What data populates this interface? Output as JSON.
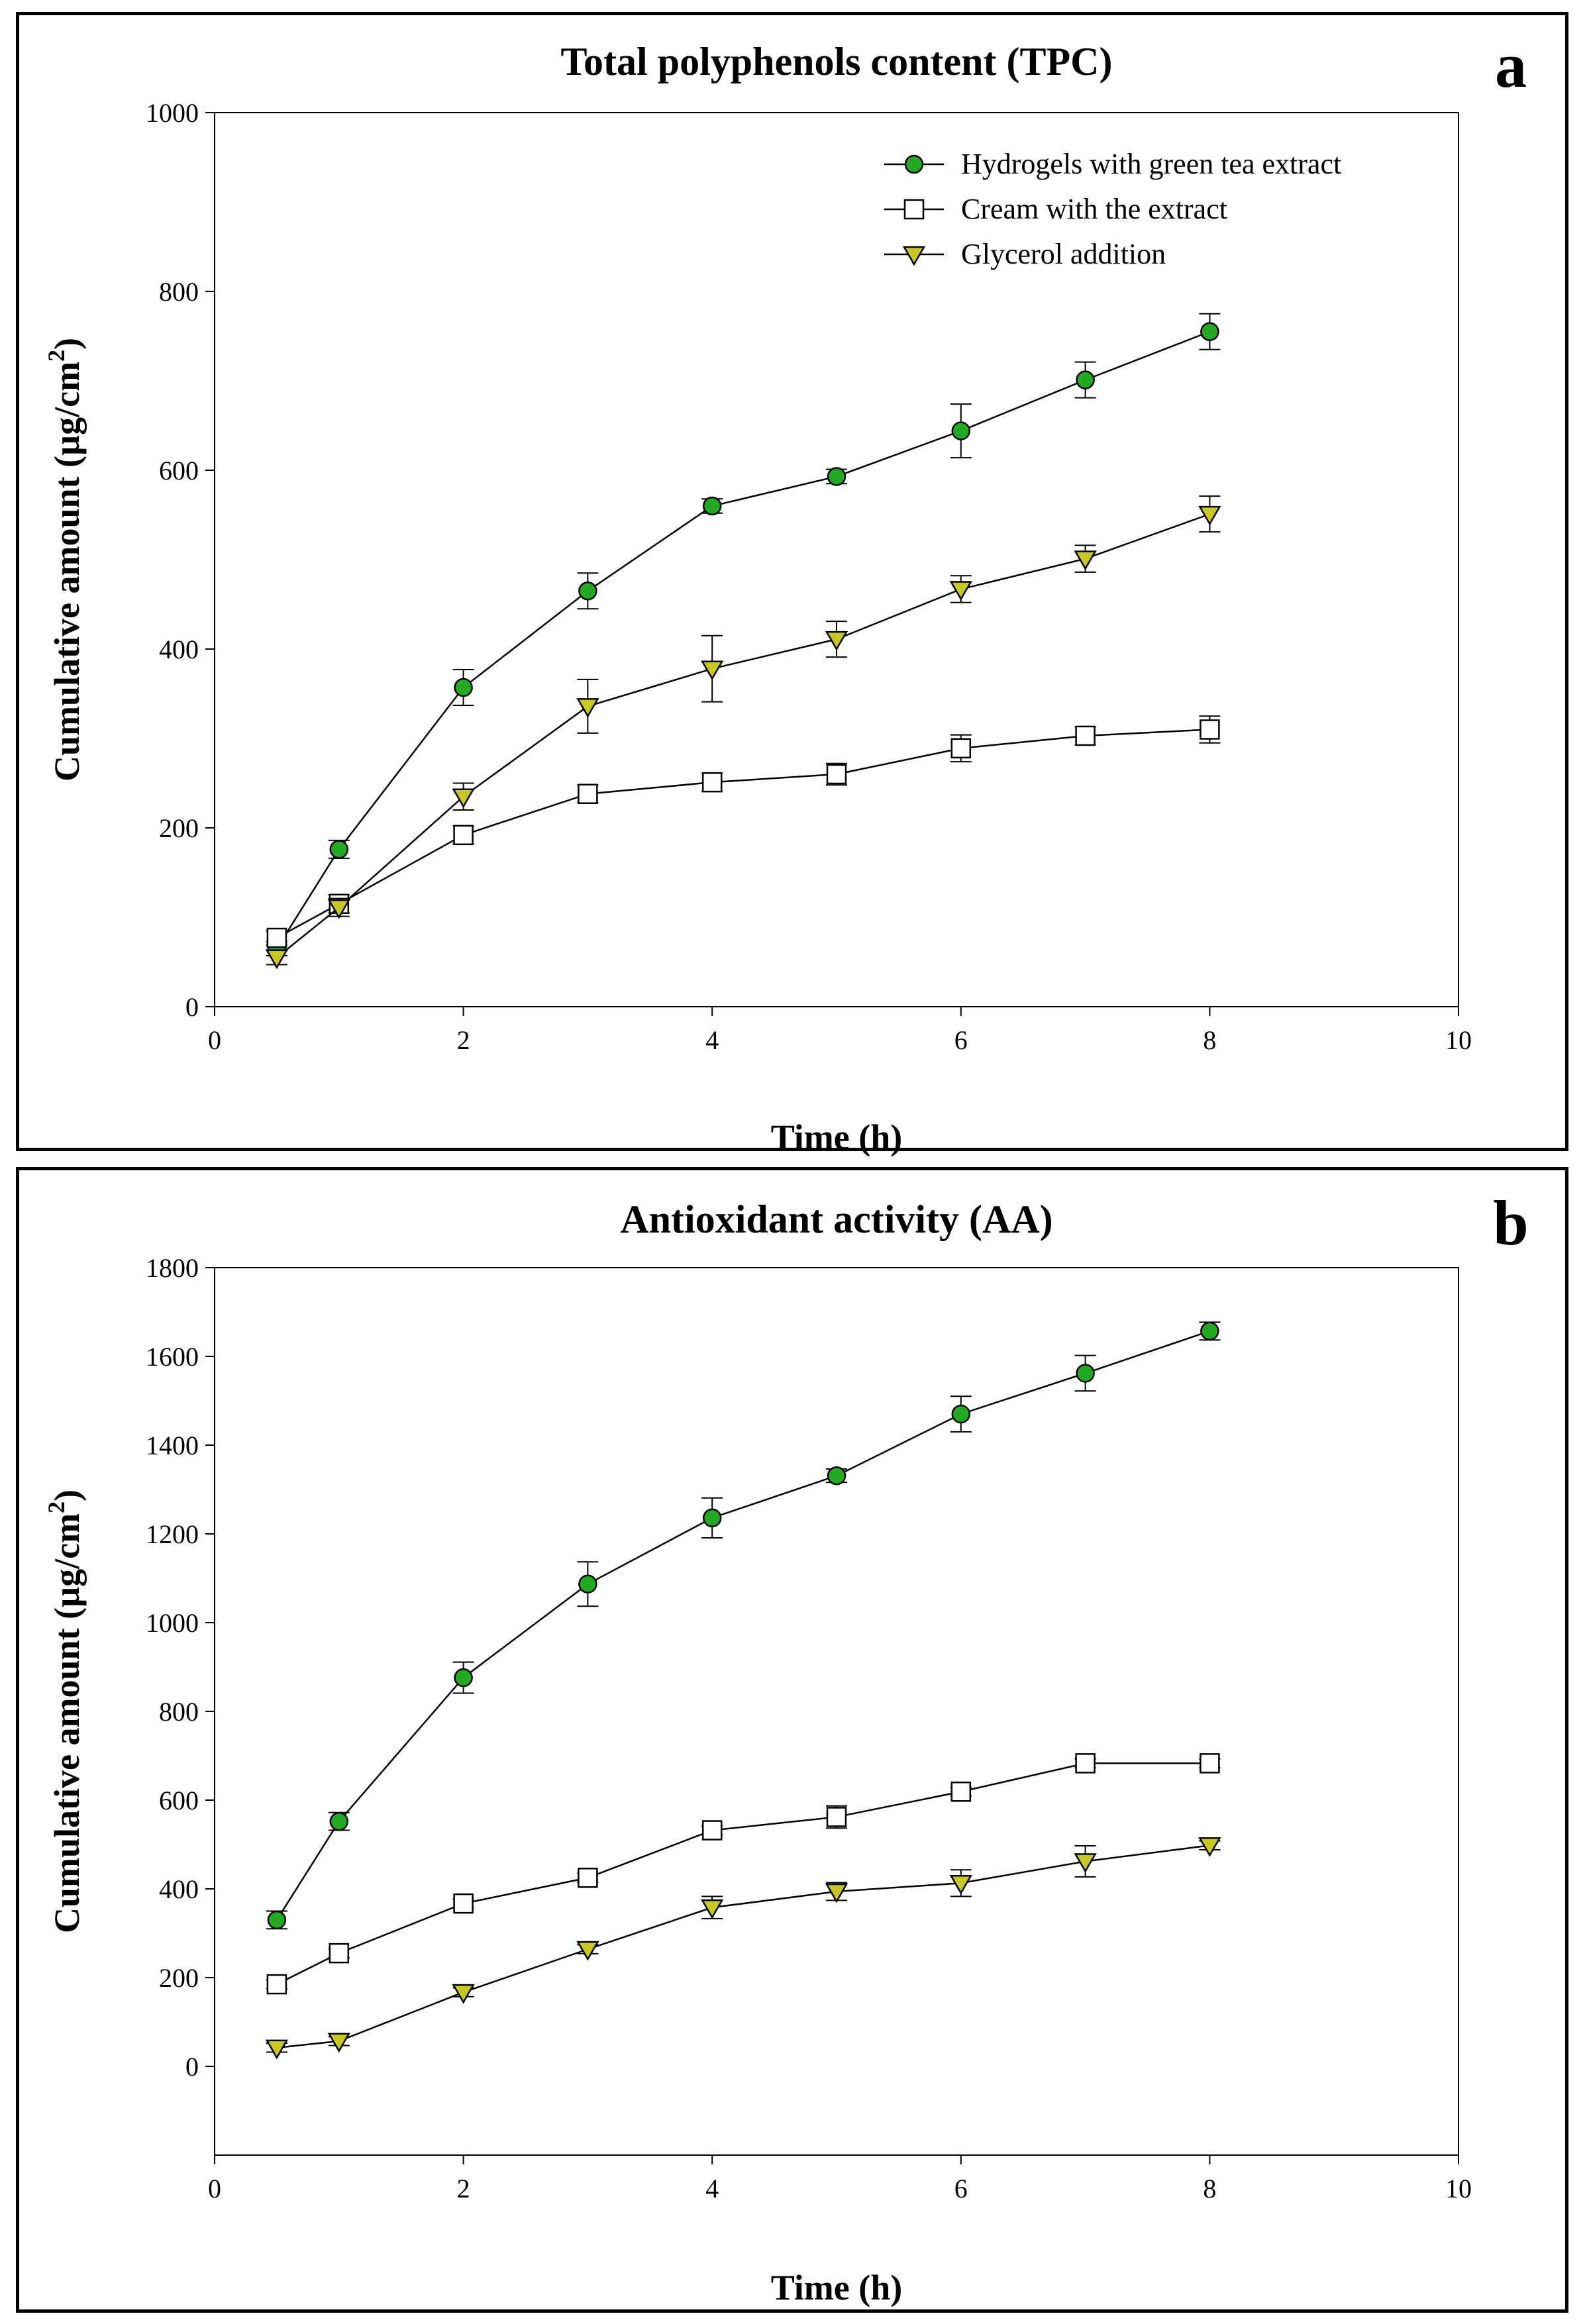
{
  "figure_labels": [
    "a",
    "b"
  ],
  "chart_data": [
    {
      "type": "line",
      "panel_label": "a",
      "title": "Total polyphenols content (TPC)",
      "xlabel": "Time (h)",
      "ylabel": "Cumulative amount (µg/cm",
      "ylabel_superscript": "2",
      "ylabel_close": ")",
      "xlim": [
        0,
        10
      ],
      "ylim": [
        0,
        1000
      ],
      "xticks": [
        0,
        2,
        4,
        6,
        8,
        10
      ],
      "yticks": [
        0,
        200,
        400,
        600,
        800,
        1000
      ],
      "grid": false,
      "legend_position": "top-right",
      "series": [
        {
          "name": "Hydrogels with green tea extract",
          "marker": "circle",
          "color": "#22aa22",
          "x": [
            0.5,
            1,
            2,
            3,
            4,
            5,
            6,
            7,
            8
          ],
          "y": [
            65,
            176,
            357,
            465,
            560,
            593,
            644,
            701,
            755
          ],
          "err": [
            8,
            10,
            20,
            20,
            8,
            8,
            30,
            20,
            20
          ]
        },
        {
          "name": "Cream with the extract",
          "marker": "square",
          "color": "#ffffff",
          "x": [
            0.5,
            1,
            2,
            3,
            4,
            5,
            6,
            7,
            8
          ],
          "y": [
            77,
            115,
            192,
            238,
            251,
            260,
            289,
            303,
            310
          ],
          "err": [
            8,
            10,
            10,
            10,
            10,
            12,
            15,
            10,
            15
          ]
        },
        {
          "name": "Glycerol addition",
          "marker": "triangle-down",
          "color": "#c8c81e",
          "x": [
            0.5,
            1,
            2,
            3,
            4,
            5,
            6,
            7,
            8
          ],
          "y": [
            55,
            111,
            235,
            336,
            378,
            411,
            467,
            501,
            551
          ],
          "err": [
            8,
            10,
            15,
            30,
            37,
            20,
            15,
            15,
            20
          ]
        }
      ]
    },
    {
      "type": "line",
      "panel_label": "b",
      "title": "Antioxidant activity (AA)",
      "xlabel": "Time (h)",
      "ylabel": "Cumulative amount (µg/cm",
      "ylabel_superscript": "2",
      "ylabel_close": ")",
      "xlim": [
        0,
        10
      ],
      "ylim": [
        -200,
        1800
      ],
      "xticks": [
        0,
        2,
        4,
        6,
        8,
        10
      ],
      "yticks": [
        0,
        200,
        400,
        600,
        800,
        1000,
        1200,
        1400,
        1600,
        1800
      ],
      "grid": false,
      "series": [
        {
          "name": "Hydrogels with green tea extract",
          "marker": "circle",
          "color": "#22aa22",
          "x": [
            0.5,
            1,
            2,
            3,
            4,
            5,
            6,
            7,
            8
          ],
          "y": [
            330,
            552,
            876,
            1087,
            1236,
            1331,
            1470,
            1562,
            1657
          ],
          "err": [
            20,
            20,
            35,
            50,
            45,
            15,
            40,
            40,
            20
          ]
        },
        {
          "name": "Cream with the extract",
          "marker": "square",
          "color": "#ffffff",
          "x": [
            0.5,
            1,
            2,
            3,
            4,
            5,
            6,
            7,
            8
          ],
          "y": [
            185,
            255,
            367,
            425,
            532,
            562,
            619,
            683,
            683
          ],
          "err": [
            10,
            10,
            10,
            10,
            10,
            25,
            10,
            10,
            10
          ]
        },
        {
          "name": "Glycerol addition",
          "marker": "triangle-down",
          "color": "#c8c81e",
          "x": [
            0.5,
            1,
            2,
            3,
            4,
            5,
            6,
            7,
            8
          ],
          "y": [
            42,
            57,
            167,
            264,
            358,
            394,
            413,
            462,
            498
          ],
          "err": [
            10,
            10,
            10,
            10,
            25,
            20,
            30,
            35,
            10
          ]
        }
      ]
    }
  ]
}
